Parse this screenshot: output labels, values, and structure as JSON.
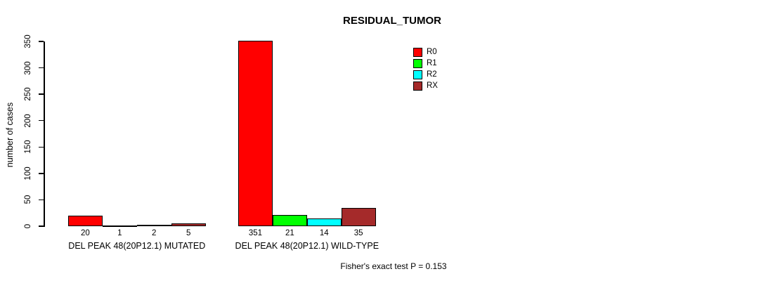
{
  "chart_data": {
    "type": "bar",
    "title": "RESIDUAL_TUMOR",
    "ylabel": "number of cases",
    "xlabel": "",
    "categories": [
      "DEL PEAK 48(20P12.1) MUTATED",
      "DEL PEAK 48(20P12.1) WILD-TYPE"
    ],
    "series": [
      {
        "name": "R0",
        "color": "#FF0000",
        "values": [
          20,
          351
        ]
      },
      {
        "name": "R1",
        "color": "#00FF00",
        "values": [
          1,
          21
        ]
      },
      {
        "name": "R2",
        "color": "#00FFFF",
        "values": [
          2,
          14
        ]
      },
      {
        "name": "RX",
        "color": "#A52A2A",
        "values": [
          5,
          35
        ]
      }
    ],
    "bar_labels": [
      [
        "20",
        "1",
        "2",
        "5"
      ],
      [
        "351",
        "21",
        "14",
        "35"
      ]
    ],
    "ylim": [
      0,
      350
    ],
    "yticks": [
      0,
      50,
      100,
      150,
      200,
      250,
      300,
      350
    ],
    "grid": false,
    "legend_position": "top-right",
    "annotation": "Fisher's exact test P = 0.153"
  }
}
